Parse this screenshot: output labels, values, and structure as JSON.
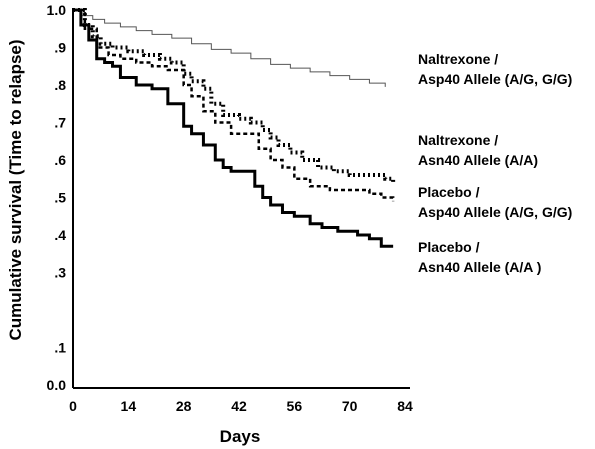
{
  "chart_data": {
    "type": "line",
    "xlabel": "Days",
    "ylabel": "Cumulative survival (Time to relapse)",
    "xlim": [
      0,
      84
    ],
    "ylim": [
      0,
      1
    ],
    "x_ticks": [
      0,
      14,
      28,
      42,
      56,
      70,
      84
    ],
    "x_tick_labels": [
      "0",
      "14",
      "28",
      "42",
      "56",
      "70",
      "84"
    ],
    "y_ticks": [
      1.0,
      0.9,
      0.8,
      0.7,
      0.6,
      0.5,
      0.4,
      0.3,
      0.1,
      0.0
    ],
    "y_tick_labels": [
      "1.0",
      ".9",
      ".8",
      ".7",
      ".6",
      ".5",
      ".4",
      ".3",
      ".1",
      "0.0"
    ],
    "grid": false,
    "legend": "right",
    "series": [
      {
        "name": "Naltrexone / Asp40 Allele (A/G, G/G)",
        "legend_lines": [
          "Naltrexone  /",
          "Asp40 Allele (A/G, G/G)"
        ],
        "style": "thin-solid",
        "color": "#555555",
        "x": [
          0,
          2,
          5,
          8,
          12,
          16,
          20,
          25,
          30,
          35,
          40,
          45,
          50,
          55,
          60,
          65,
          70,
          75,
          79
        ],
        "y": [
          1.0,
          0.985,
          0.975,
          0.965,
          0.955,
          0.945,
          0.935,
          0.925,
          0.91,
          0.895,
          0.885,
          0.87,
          0.855,
          0.845,
          0.835,
          0.825,
          0.815,
          0.805,
          0.795
        ]
      },
      {
        "name": "Naltrexone / Asn40 Allele (A/A)",
        "legend_lines": [
          "Naltrexone  /",
          "Asn40 Allele (A/A)"
        ],
        "style": "thick-dotted",
        "color": "#000000",
        "x": [
          0,
          3,
          5,
          7,
          10,
          14,
          18,
          22,
          25,
          28,
          30,
          33,
          35,
          38,
          42,
          45,
          48,
          50,
          52,
          55,
          58,
          62,
          66,
          70,
          75,
          79,
          81
        ],
        "y": [
          1.0,
          0.96,
          0.93,
          0.91,
          0.9,
          0.89,
          0.88,
          0.87,
          0.86,
          0.83,
          0.81,
          0.79,
          0.75,
          0.72,
          0.71,
          0.7,
          0.68,
          0.66,
          0.64,
          0.62,
          0.6,
          0.58,
          0.57,
          0.56,
          0.56,
          0.55,
          0.54
        ]
      },
      {
        "name": "Placebo / Asp40 Allele (A/G, G/G)",
        "legend_lines": [
          "Placebo /",
          "Asp40 Allele (A/G, G/G)"
        ],
        "style": "dashed",
        "color": "#000000",
        "x": [
          0,
          3,
          6,
          9,
          12,
          16,
          20,
          24,
          28,
          30,
          33,
          36,
          40,
          44,
          47,
          50,
          53,
          56,
          60,
          65,
          70,
          75,
          78,
          81
        ],
        "y": [
          1.0,
          0.95,
          0.9,
          0.88,
          0.87,
          0.86,
          0.85,
          0.84,
          0.8,
          0.77,
          0.73,
          0.7,
          0.67,
          0.67,
          0.63,
          0.6,
          0.58,
          0.55,
          0.53,
          0.52,
          0.52,
          0.51,
          0.5,
          0.49
        ]
      },
      {
        "name": "Placebo / Asn40 Allele (A/A )",
        "legend_lines": [
          "Placebo /",
          "Asn40 Allele (A/A  )"
        ],
        "style": "thick-solid",
        "color": "#000000",
        "x": [
          0,
          2,
          4,
          6,
          8,
          10,
          12,
          16,
          20,
          24,
          28,
          30,
          33,
          36,
          38,
          40,
          43,
          46,
          48,
          50,
          53,
          56,
          60,
          63,
          67,
          72,
          75,
          78,
          81
        ],
        "y": [
          1.0,
          0.96,
          0.92,
          0.87,
          0.86,
          0.85,
          0.82,
          0.8,
          0.79,
          0.75,
          0.69,
          0.67,
          0.64,
          0.6,
          0.58,
          0.57,
          0.57,
          0.53,
          0.5,
          0.48,
          0.46,
          0.45,
          0.43,
          0.42,
          0.41,
          0.4,
          0.39,
          0.37,
          0.37
        ]
      }
    ]
  }
}
